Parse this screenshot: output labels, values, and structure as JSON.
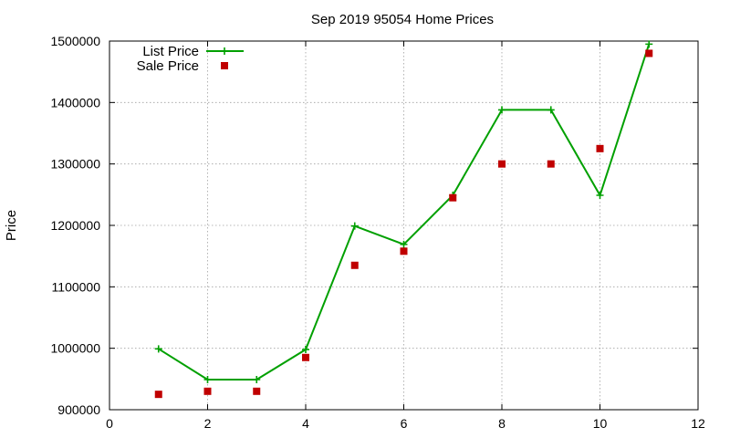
{
  "chart_data": {
    "type": "line",
    "title": "Sep 2019 95054 Home Prices",
    "xlabel": "",
    "ylabel": "Price",
    "xlim": [
      0,
      12
    ],
    "ylim": [
      900000,
      1500000
    ],
    "xticks": [
      0,
      2,
      4,
      6,
      8,
      10,
      12
    ],
    "yticks": [
      900000,
      1000000,
      1100000,
      1200000,
      1300000,
      1400000,
      1500000
    ],
    "xtick_labels": [
      "0",
      "2",
      "4",
      "6",
      "8",
      "10",
      "12"
    ],
    "ytick_labels": [
      "900000",
      "1000000",
      "1100000",
      "1200000",
      "1300000",
      "1400000",
      "1500000"
    ],
    "grid": true,
    "legend_position": "top-left",
    "series": [
      {
        "name": "List Price",
        "style": "lines+points",
        "marker": "plus",
        "color": "#00a000",
        "x": [
          1,
          2,
          3,
          4,
          5,
          6,
          7,
          8,
          9,
          10,
          11
        ],
        "y": [
          999000,
          949000,
          949000,
          998000,
          1199000,
          1169000,
          1249000,
          1388000,
          1388000,
          1249000,
          1495000
        ]
      },
      {
        "name": "Sale Price",
        "style": "points",
        "marker": "square",
        "color": "#c00000",
        "x": [
          1,
          2,
          3,
          4,
          5,
          6,
          7,
          8,
          9,
          10,
          11
        ],
        "y": [
          925000,
          930000,
          930000,
          985000,
          1135000,
          1158000,
          1245000,
          1300000,
          1300000,
          1325000,
          1480000
        ]
      }
    ]
  }
}
